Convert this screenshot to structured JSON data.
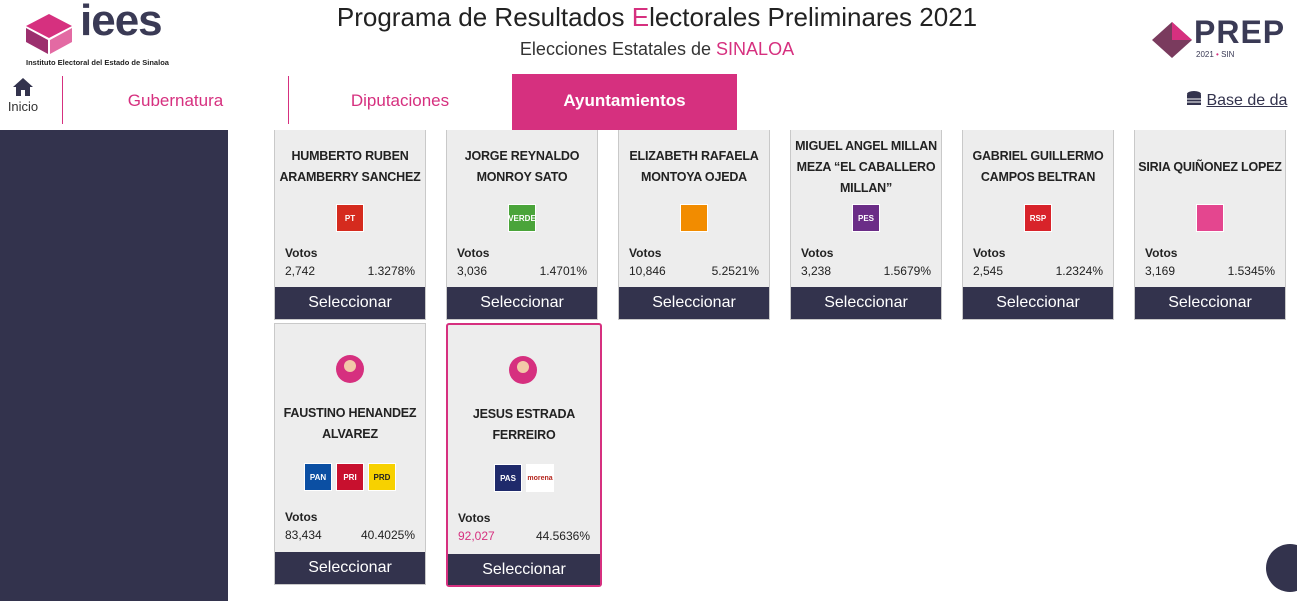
{
  "header": {
    "logo_text": "iees",
    "logo_caption": "Instituto Electoral del Estado de Sinaloa",
    "title_parts": [
      "Programa de Resultados ",
      "E",
      "lectorales Preliminares 2021"
    ],
    "subtitle_parts": [
      "Elecciones Estatales de ",
      "SINALOA"
    ],
    "prep_logo": "PREP",
    "prep_year": "2021",
    "prep_state": "SIN"
  },
  "nav": {
    "home": "Inicio",
    "tabs": [
      "Gubernatura",
      "Diputaciones",
      "Ayuntamientos"
    ],
    "active_tab": 2,
    "database": "Base de da"
  },
  "labels": {
    "votes": "Votos",
    "select": "Seleccionar"
  },
  "candidates": [
    {
      "name": "HUMBERTO RUBEN ARAMBERRY SANCHEZ",
      "parties": [
        {
          "label": "PT",
          "color": "#d52b1e"
        }
      ],
      "votes": "2,742",
      "percent": "1.3278%"
    },
    {
      "name": "JORGE REYNALDO MONROY SATO",
      "parties": [
        {
          "label": "VERDE",
          "color": "#4aa43a"
        }
      ],
      "votes": "3,036",
      "percent": "1.4701%"
    },
    {
      "name": "ELIZABETH RAFAELA MONTOYA OJEDA",
      "parties": [
        {
          "color": "#f28c00"
        }
      ],
      "votes": "10,846",
      "percent": "5.2521%"
    },
    {
      "name": "MIGUEL ANGEL MILLAN MEZA “EL CABALLERO MILLAN”",
      "parties": [
        {
          "label": "PES",
          "color": "#6b2d87"
        }
      ],
      "votes": "3,238",
      "percent": "1.5679%"
    },
    {
      "name": "GABRIEL GUILLERMO CAMPOS BELTRAN",
      "parties": [
        {
          "label": "RSP",
          "color": "#d8232a"
        }
      ],
      "votes": "2,545",
      "percent": "1.2324%"
    },
    {
      "name": "SIRIA QUIÑONEZ LOPEZ",
      "parties": [
        {
          "color": "#e4468f"
        }
      ],
      "votes": "3,169",
      "percent": "1.5345%"
    },
    {
      "name": "FAUSTINO HENANDEZ ALVAREZ",
      "avatar": true,
      "parties": [
        {
          "label": "PAN",
          "color": "#0b4fa3"
        },
        {
          "label": "PRI",
          "color": "#c8102e"
        },
        {
          "label": "PRD",
          "color": "#f7d100"
        }
      ],
      "votes": "83,434",
      "percent": "40.4025%"
    },
    {
      "name": "JESUS ESTRADA FERREIRO",
      "avatar": true,
      "leading": true,
      "parties": [
        {
          "label": "PAS",
          "color": "#1f2a6b"
        },
        {
          "label": "morena",
          "color": "#b5261e"
        }
      ],
      "votes": "92,027",
      "percent": "44.5636%"
    }
  ]
}
